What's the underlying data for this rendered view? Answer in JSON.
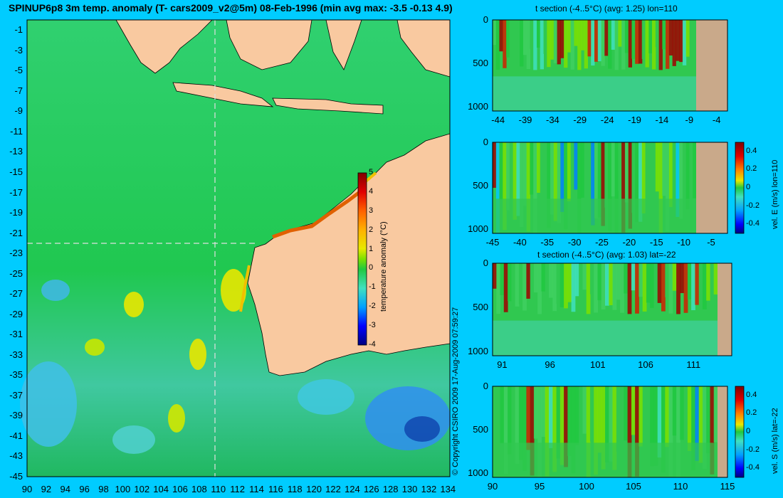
{
  "window": {
    "title": "SPINUP6p8 3m temp. anomaly (T- cars2009_v2@5m) 08-Feb-1996 (min avg max: -3.5 -0.13 4.9)",
    "copyright": "© Copyright CSIRO 2009   17-Aug-2009 07:59:27"
  },
  "colors": {
    "background": "#00ccff",
    "land": "#f9c9a0",
    "section_land": "#c9a98a",
    "colormap": [
      "#000080",
      "#0000ff",
      "#0080ff",
      "#00c8ff",
      "#40e0c0",
      "#20c840",
      "#7ce000",
      "#e8e800",
      "#ffb000",
      "#ff6000",
      "#e00000",
      "#800000"
    ]
  },
  "chart_data": [
    {
      "id": "map",
      "type": "heatmap",
      "title": "SPINUP6p8 3m temp. anomaly (T- cars2009_v2@5m) 08-Feb-1996 (min avg max: -3.5 -0.13 4.9)",
      "xlabel": "",
      "ylabel": "",
      "xlim": [
        90,
        135
      ],
      "ylim": [
        -45,
        0
      ],
      "xticks": [
        "90",
        "92",
        "94",
        "96",
        "98",
        "100",
        "102",
        "104",
        "106",
        "108",
        "110",
        "112",
        "114",
        "116",
        "118",
        "120",
        "122",
        "124",
        "126",
        "128",
        "130",
        "132",
        "134"
      ],
      "yticks": [
        "-1",
        "-3",
        "-5",
        "-7",
        "-9",
        "-11",
        "-13",
        "-15",
        "-17",
        "-19",
        "-21",
        "-23",
        "-25",
        "-27",
        "-29",
        "-31",
        "-33",
        "-35",
        "-37",
        "-39",
        "-41",
        "-43",
        "-45"
      ],
      "section_lines": {
        "lon": 110,
        "lat": -22
      },
      "stats": {
        "min": -3.5,
        "avg": -0.13,
        "max": 4.9
      },
      "colorbar": {
        "label": "temperature anomaly (°C)",
        "ticks": [
          "5",
          "4",
          "3",
          "2",
          "1",
          "0",
          "-1",
          "-2",
          "-3",
          "-4"
        ],
        "range": [
          -4,
          5
        ]
      }
    },
    {
      "id": "section-t-lon",
      "type": "heatmap",
      "title": "t section (-4..5°C) (avg: 1.25) lon=110",
      "xlim": [
        -45,
        -2
      ],
      "ylim": [
        1050,
        0
      ],
      "xticks": [
        "-44",
        "-39",
        "-34",
        "-29",
        "-24",
        "-19",
        "-14",
        "-9",
        "-4"
      ],
      "yticks": [
        "0",
        "500",
        "1000"
      ],
      "avg": 1.25
    },
    {
      "id": "section-vel-e",
      "type": "heatmap",
      "title": "",
      "xlim": [
        -45,
        -2
      ],
      "ylim": [
        1050,
        0
      ],
      "xticks": [
        "-45",
        "-40",
        "-35",
        "-30",
        "-25",
        "-20",
        "-15",
        "-10",
        "-5"
      ],
      "yticks": [
        "0",
        "500",
        "1000"
      ],
      "colorbar": {
        "label": "vel. E (m/s) lon=110",
        "ticks": [
          "0.4",
          "0.2",
          "0",
          "-0.2",
          "-0.4"
        ],
        "range": [
          -0.5,
          0.5
        ]
      }
    },
    {
      "id": "section-t-lat",
      "type": "heatmap",
      "title": "t section (-4..5°C) (avg: 1.03) lat=-22",
      "xlim": [
        90,
        115
      ],
      "ylim": [
        1050,
        0
      ],
      "xticks": [
        "91",
        "96",
        "101",
        "106",
        "111"
      ],
      "yticks": [
        "0",
        "500",
        "1000"
      ],
      "avg": 1.03
    },
    {
      "id": "section-vel-s",
      "type": "heatmap",
      "title": "",
      "xlim": [
        90,
        115
      ],
      "ylim": [
        1050,
        0
      ],
      "xticks": [
        "90",
        "95",
        "100",
        "105",
        "110",
        "115"
      ],
      "yticks": [
        "0",
        "500",
        "1000"
      ],
      "colorbar": {
        "label": "vel. S (m/s) lat=-22",
        "ticks": [
          "0.4",
          "0.2",
          "0",
          "-0.2",
          "-0.4"
        ],
        "range": [
          -0.5,
          0.5
        ]
      }
    }
  ]
}
